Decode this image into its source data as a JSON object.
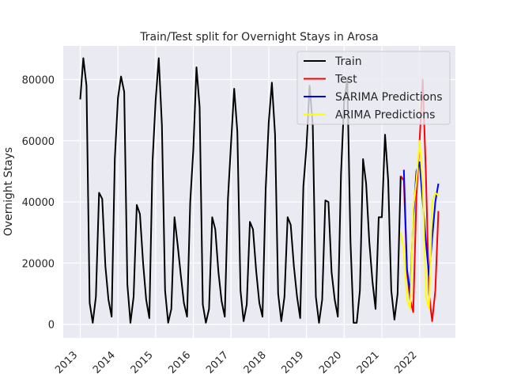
{
  "chart_data": {
    "type": "line",
    "title": "Train/Test split for Overnight Stays in Arosa",
    "xlabel": "",
    "ylabel": "Overnight Stays",
    "xlim": [
      2012.55,
      2022.95
    ],
    "ylim": [
      -4500,
      91000
    ],
    "x_ticks": [
      2013,
      2014,
      2015,
      2016,
      2017,
      2018,
      2019,
      2020,
      2021,
      2022
    ],
    "x_tick_labels": [
      "2013",
      "2014",
      "2015",
      "2016",
      "2017",
      "2018",
      "2019",
      "2020",
      "2021",
      "2022"
    ],
    "y_ticks": [
      0,
      20000,
      40000,
      60000,
      80000
    ],
    "y_tick_labels": [
      "0",
      "20000",
      "40000",
      "60000",
      "80000"
    ],
    "grid": true,
    "legend_position": "top-right",
    "series": [
      {
        "name": "Train",
        "color": "#000000",
        "x": [
          2013.0,
          2013.083,
          2013.167,
          2013.25,
          2013.333,
          2013.417,
          2013.5,
          2013.583,
          2013.667,
          2013.75,
          2013.833,
          2013.917,
          2014.0,
          2014.083,
          2014.167,
          2014.25,
          2014.333,
          2014.417,
          2014.5,
          2014.583,
          2014.667,
          2014.75,
          2014.833,
          2014.917,
          2015.0,
          2015.083,
          2015.167,
          2015.25,
          2015.333,
          2015.417,
          2015.5,
          2015.583,
          2015.667,
          2015.75,
          2015.833,
          2015.917,
          2016.0,
          2016.083,
          2016.167,
          2016.25,
          2016.333,
          2016.417,
          2016.5,
          2016.583,
          2016.667,
          2016.75,
          2016.833,
          2016.917,
          2017.0,
          2017.083,
          2017.167,
          2017.25,
          2017.333,
          2017.417,
          2017.5,
          2017.583,
          2017.667,
          2017.75,
          2017.833,
          2017.917,
          2018.0,
          2018.083,
          2018.167,
          2018.25,
          2018.333,
          2018.417,
          2018.5,
          2018.583,
          2018.667,
          2018.75,
          2018.833,
          2018.917,
          2019.0,
          2019.083,
          2019.167,
          2019.25,
          2019.333,
          2019.417,
          2019.5,
          2019.583,
          2019.667,
          2019.75,
          2019.833,
          2019.917,
          2020.0,
          2020.083,
          2020.167,
          2020.25,
          2020.333,
          2020.417,
          2020.5,
          2020.583,
          2020.667,
          2020.75,
          2020.833,
          2020.917,
          2021.0,
          2021.083,
          2021.167,
          2021.25,
          2021.333,
          2021.417,
          2021.5
        ],
        "y": [
          73500,
          87000,
          78000,
          7000,
          500,
          9000,
          43000,
          41000,
          19000,
          8000,
          2500,
          54000,
          74000,
          81000,
          76000,
          13000,
          500,
          9000,
          39000,
          36000,
          20000,
          8000,
          2000,
          53000,
          73000,
          87000,
          65000,
          11000,
          500,
          5000,
          35000,
          26000,
          16000,
          7000,
          2500,
          40000,
          57000,
          84000,
          71000,
          6500,
          500,
          5000,
          35000,
          31000,
          17000,
          7500,
          2500,
          41000,
          59000,
          77000,
          63000,
          11000,
          1000,
          6500,
          33500,
          31000,
          17500,
          7000,
          2500,
          44000,
          66000,
          79000,
          62000,
          10000,
          1000,
          9000,
          35000,
          32500,
          19000,
          9000,
          2000,
          45000,
          58000,
          78000,
          65000,
          9000,
          500,
          8000,
          40500,
          40000,
          17000,
          8000,
          2500,
          49000,
          73000,
          80000,
          27000,
          500,
          500,
          11000,
          54000,
          46000,
          27000,
          14000,
          5000,
          35000,
          35000,
          62000,
          47000,
          11000,
          1500,
          10000,
          48500
        ]
      },
      {
        "name": "Test",
        "color": "#ff0000",
        "x": [
          2021.5,
          2021.583,
          2021.667,
          2021.75,
          2021.833,
          2021.917,
          2022.0,
          2022.083,
          2022.167,
          2022.25,
          2022.333,
          2022.417,
          2022.5
        ],
        "y": [
          48500,
          47000,
          17000,
          8000,
          4000,
          42000,
          60000,
          80000,
          49000,
          10000,
          1000,
          11000,
          37000
        ]
      },
      {
        "name": "SARIMA Predictions",
        "color": "#0000ff",
        "x": [
          2021.583,
          2021.667,
          2021.75,
          2021.833,
          2021.917,
          2022.0,
          2022.083,
          2022.167,
          2022.25,
          2022.333,
          2022.417,
          2022.5
        ],
        "y": [
          50500,
          18000,
          10000,
          35000,
          50000,
          53000,
          40000,
          27000,
          16000,
          28000,
          40000,
          46000
        ]
      },
      {
        "name": "ARIMA Predictions",
        "color": "#ffff00",
        "x": [
          2021.5,
          2021.583,
          2021.667,
          2021.75,
          2021.833,
          2021.917,
          2022.0,
          2022.083,
          2022.167,
          2022.25,
          2022.333,
          2022.417,
          2022.5
        ],
        "y": [
          30000,
          24000,
          8000,
          5000,
          38000,
          47000,
          60000,
          45000,
          9000,
          5000,
          40000,
          43000,
          42000
        ]
      }
    ]
  }
}
